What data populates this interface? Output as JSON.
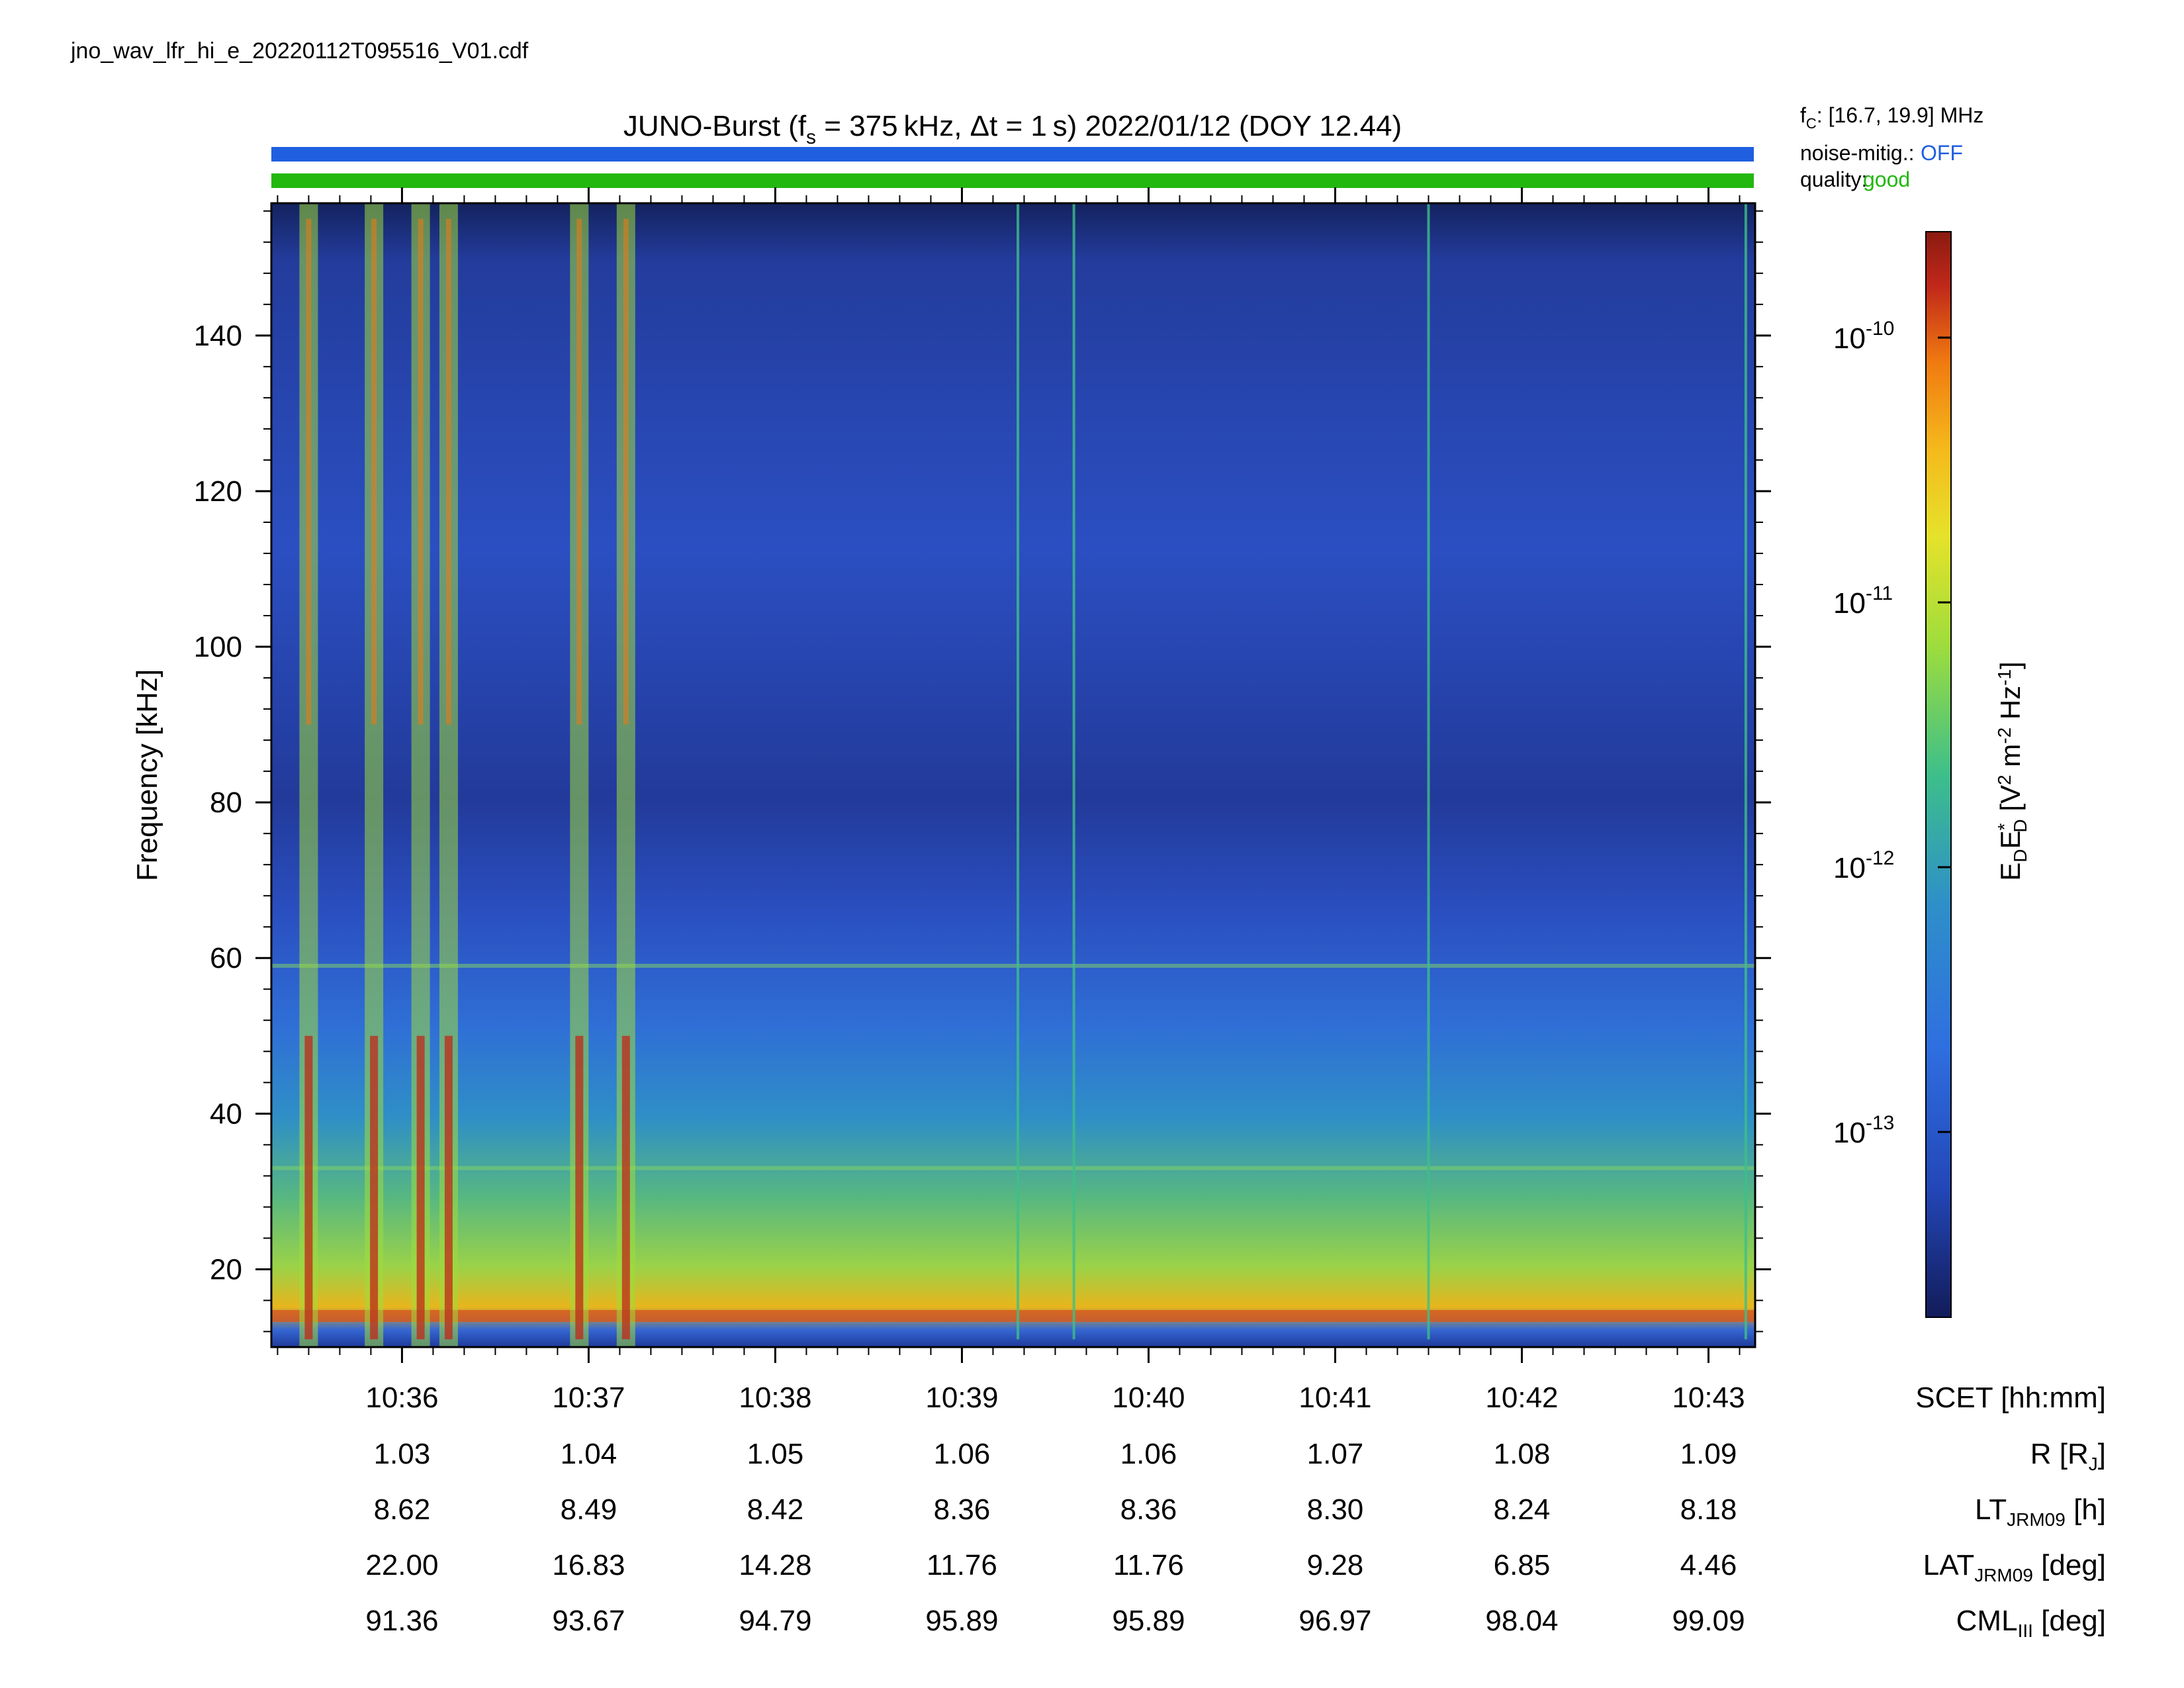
{
  "file_name": "jno_wav_lfr_hi_e_20220112T095516_V01.cdf",
  "title": {
    "prefix": "JUNO-Burst (f",
    "fs_sub": "s",
    "fs_mid": " = 375 kHz, Δt = 1 s)  2022/01/12 (DOY 12.44)"
  },
  "status": {
    "fc_label": "f",
    "fc_sub": "C",
    "fc_value": ": [16.7, 19.9] MHz",
    "noise_label": "noise-mitig.:",
    "noise_value": "OFF",
    "noise_color": "#1f5fe0",
    "quality_label": "quality:",
    "quality_value": "good",
    "quality_color": "#22b80f"
  },
  "colorbar": {
    "label_main": "E",
    "label_parts": [
      "E",
      "D",
      "E",
      "*",
      "D",
      "[V",
      "2",
      " m",
      "-2",
      " Hz",
      "-1",
      "]"
    ],
    "ticks": [
      {
        "base": "10",
        "exp": "-10",
        "value": 1e-10
      },
      {
        "base": "10",
        "exp": "-11",
        "value": 1e-11
      },
      {
        "base": "10",
        "exp": "-12",
        "value": 1e-12
      },
      {
        "base": "10",
        "exp": "-13",
        "value": 1e-13
      }
    ],
    "log_range": [
      -13.7,
      -9.6
    ],
    "colors": [
      "#121c5a",
      "#2f5bdc",
      "#2e8fc9",
      "#3dbf8a",
      "#b8e43a",
      "#f5d21c",
      "#f07a10",
      "#c0281a",
      "#8a1a10"
    ]
  },
  "chart_data": {
    "type": "heatmap",
    "title": "JUNO-Burst (fs = 375 kHz, Δt = 1 s)  2022/01/12 (DOY 12.44)",
    "ylabel": "Frequency [kHz]",
    "ylim": [
      10,
      157
    ],
    "yticks": [
      20,
      40,
      60,
      80,
      100,
      120,
      140
    ],
    "xlabel": "SCET [hh:mm]",
    "xlim_minutes": [
      35.3,
      43.25
    ],
    "xticks": [
      {
        "label": "10:36",
        "minute": 36
      },
      {
        "label": "10:37",
        "minute": 37
      },
      {
        "label": "10:38",
        "minute": 38
      },
      {
        "label": "10:39",
        "minute": 39
      },
      {
        "label": "10:40",
        "minute": 40
      },
      {
        "label": "10:41",
        "minute": 41
      },
      {
        "label": "10:42",
        "minute": 42
      },
      {
        "label": "10:43",
        "minute": 43
      }
    ],
    "ephemeris": [
      {
        "label": "R [R",
        "sub": "J",
        "tail": "]",
        "values": [
          "1.03",
          "1.04",
          "1.05",
          "1.06",
          "1.06",
          "1.07",
          "1.08",
          "1.09"
        ]
      },
      {
        "label": "LT",
        "sub": "JRM09",
        "tail": " [h]",
        "values": [
          "8.62",
          "8.49",
          "8.42",
          "8.36",
          "8.36",
          "8.30",
          "8.24",
          "8.18"
        ]
      },
      {
        "label": "LAT",
        "sub": "JRM09",
        "tail": " [deg]",
        "values": [
          "22.00",
          "16.83",
          "14.28",
          "11.76",
          "11.76",
          "9.28",
          "6.85",
          "4.46"
        ]
      },
      {
        "label": "CML",
        "sub": "III",
        "tail": " [deg]",
        "values": [
          "91.36",
          "93.67",
          "94.79",
          "95.89",
          "95.89",
          "96.97",
          "98.04",
          "99.09"
        ]
      }
    ],
    "features": {
      "continuous_band_khz": 14,
      "horizontal_lines_khz": [
        33,
        59
      ],
      "bright_bursts_minute": [
        35.5,
        35.85,
        36.1,
        36.25,
        36.95,
        37.2
      ],
      "vertical_lines_minute": [
        39.3,
        39.6,
        41.5,
        43.2
      ]
    }
  }
}
